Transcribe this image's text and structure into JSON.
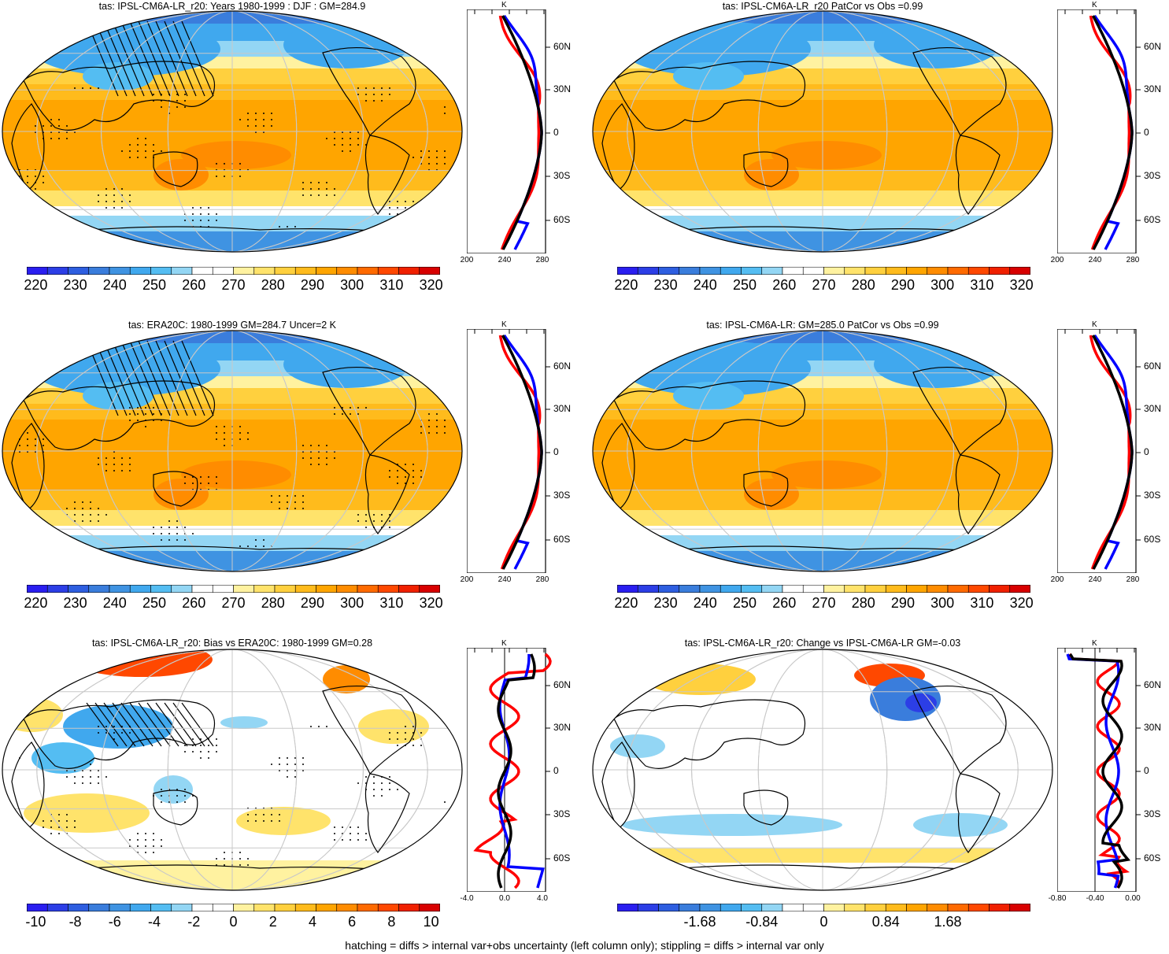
{
  "panels": [
    {
      "title": "tas: IPSL-CM6A-LR_r20: Years 1980-1999 : DJF : GM=284.9",
      "scale": "abs",
      "hatch": true,
      "stipple": true
    },
    {
      "title": "tas: IPSL-CM6A-LR_r20 PatCor vs Obs =0.99",
      "scale": "abs",
      "hatch": false,
      "stipple": false
    },
    {
      "title": "tas: ERA20C: 1980-1999 GM=284.7 Uncer=2 K",
      "scale": "abs",
      "hatch": true,
      "stipple": true
    },
    {
      "title": "tas: IPSL-CM6A-LR: GM=285.0 PatCor vs Obs =0.99",
      "scale": "abs",
      "hatch": false,
      "stipple": false
    },
    {
      "title": "tas: IPSL-CM6A-LR_r20: Bias vs ERA20C: 1980-1999 GM=0.28",
      "scale": "bias",
      "hatch": true,
      "stipple": true
    },
    {
      "title": "tas: IPSL-CM6A-LR_r20: Change vs IPSL-CM6A-LR GM=-0.03",
      "scale": "change",
      "hatch": false,
      "stipple": false
    }
  ],
  "colorbars": {
    "abs": {
      "labels": [
        "220",
        "230",
        "240",
        "250",
        "260",
        "270",
        "280",
        "290",
        "300",
        "310",
        "320"
      ]
    },
    "bias": {
      "labels": [
        "-10",
        "-8",
        "-6",
        "-4",
        "-2",
        "0",
        "2",
        "4",
        "6",
        "8",
        "10"
      ]
    },
    "change": {
      "labels": [
        "-1.68",
        "-0.84",
        "0",
        "0.84",
        "1.68"
      ]
    }
  },
  "palette": [
    "#2a1ef0",
    "#2c3ee6",
    "#2e5ee0",
    "#3a7ddc",
    "#3f93e2",
    "#40a8ee",
    "#54bdf2",
    "#93d6f4",
    "#ffffff",
    "#ffffff",
    "#fff2a0",
    "#ffe36b",
    "#ffd03e",
    "#ffbb1c",
    "#ffa500",
    "#ff8c00",
    "#ff6a00",
    "#ff4800",
    "#f02000",
    "#d80000"
  ],
  "profiles": {
    "lat_labels": [
      "60N",
      "30N",
      "0",
      "30S",
      "60S"
    ],
    "unit": "K",
    "abs_xticks": [
      "200",
      "240",
      "280"
    ],
    "bias_xticks": [
      "-4.0",
      "0.0",
      "4.0"
    ],
    "change_xticks": [
      "-0.80",
      "-0.40",
      "0.00"
    ],
    "series_colors": {
      "model": "#ff0000",
      "obs": "#0000ff",
      "mean": "#000000"
    }
  },
  "footer": "hatching = diffs > internal var+obs uncertainty (left column only); stippling = diffs > internal var only"
}
